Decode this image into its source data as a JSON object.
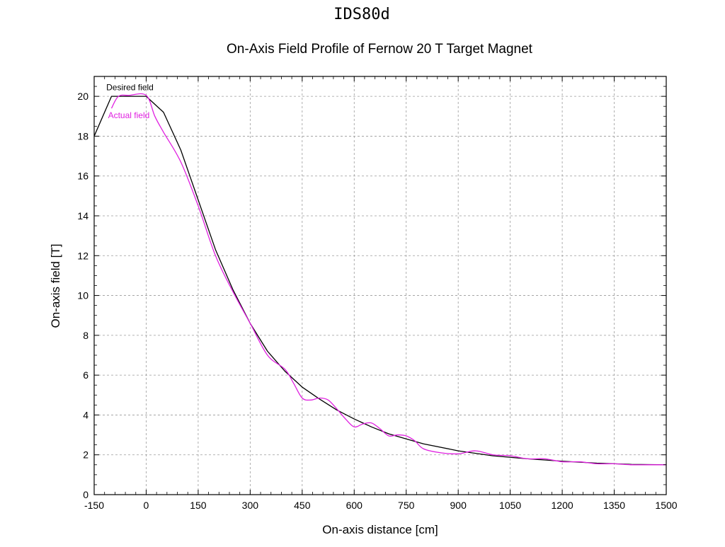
{
  "chart_data": {
    "type": "line",
    "suptitle": "IDS80d",
    "title": "On-Axis Field Profile of Fernow 20 T Target Magnet",
    "xlabel": "On-axis distance  [cm]",
    "ylabel": "On-axis field  [T]",
    "xlim": [
      -150,
      1500
    ],
    "ylim": [
      0,
      21
    ],
    "xticks": [
      -150,
      0,
      150,
      300,
      450,
      600,
      750,
      900,
      1050,
      1200,
      1350,
      1500
    ],
    "yticks": [
      0,
      2,
      4,
      6,
      8,
      10,
      12,
      14,
      16,
      18,
      20
    ],
    "grid": true,
    "annotations": [
      {
        "text": "Desired field",
        "color": "#000000",
        "x": -115,
        "y": 20.3
      },
      {
        "text": "Actual field",
        "color": "#e020e0",
        "x": -110,
        "y": 18.9
      }
    ],
    "series": [
      {
        "name": "Desired field",
        "color": "#000000",
        "x": [
          -150,
          -100,
          0,
          50,
          100,
          150,
          200,
          250,
          300,
          350,
          400,
          450,
          500,
          550,
          600,
          650,
          700,
          750,
          800,
          900,
          1000,
          1100,
          1200,
          1300,
          1400,
          1500
        ],
        "y": [
          18.0,
          20.0,
          20.0,
          19.2,
          17.3,
          14.8,
          12.3,
          10.3,
          8.6,
          7.2,
          6.2,
          5.4,
          4.8,
          4.25,
          3.8,
          3.4,
          3.05,
          2.8,
          2.55,
          2.2,
          1.95,
          1.8,
          1.68,
          1.58,
          1.52,
          1.5
        ]
      },
      {
        "name": "Actual field",
        "color": "#e020e0",
        "x": [
          -100,
          -80,
          -50,
          0,
          25,
          50,
          100,
          150,
          200,
          250,
          300,
          350,
          400,
          425,
          450,
          475,
          500,
          525,
          550,
          575,
          600,
          625,
          650,
          675,
          700,
          725,
          750,
          775,
          800,
          850,
          900,
          950,
          1000,
          1050,
          1100,
          1150,
          1200,
          1250,
          1300,
          1350,
          1400,
          1450,
          1500
        ],
        "y": [
          19.4,
          20.0,
          20.05,
          20.05,
          19.0,
          18.2,
          16.7,
          14.5,
          12.0,
          10.2,
          8.6,
          7.0,
          6.3,
          5.6,
          4.85,
          4.75,
          4.85,
          4.75,
          4.3,
          3.8,
          3.4,
          3.55,
          3.6,
          3.3,
          2.95,
          3.0,
          2.95,
          2.7,
          2.3,
          2.1,
          2.05,
          2.2,
          2.0,
          1.95,
          1.8,
          1.8,
          1.65,
          1.65,
          1.55,
          1.55,
          1.5,
          1.5,
          1.5
        ]
      }
    ]
  }
}
